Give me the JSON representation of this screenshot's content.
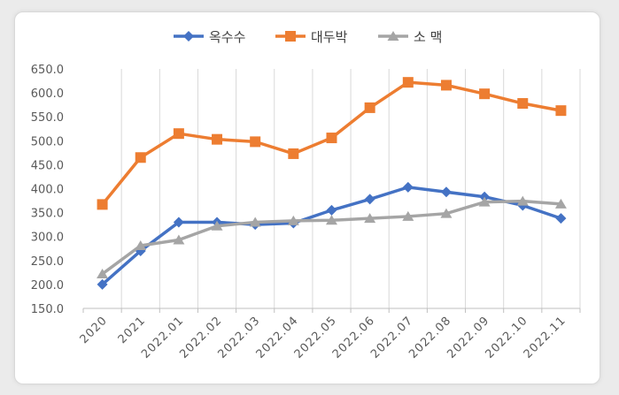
{
  "chart_data": {
    "type": "line",
    "categories": [
      "2020",
      "2021",
      "2022.01",
      "2022.02",
      "2022.03",
      "2022.04",
      "2022.05",
      "2022.06",
      "2022.07",
      "2022.08",
      "2022.09",
      "2022.10",
      "2022.11"
    ],
    "series": [
      {
        "name": "옥수수",
        "color": "#4472c4",
        "marker": "diamond",
        "values": [
          200,
          270,
          330,
          330,
          325,
          328,
          355,
          378,
          403,
          393,
          383,
          365,
          338
        ]
      },
      {
        "name": "대두박",
        "color": "#ed7d31",
        "marker": "square",
        "values": [
          367,
          465,
          515,
          503,
          498,
          473,
          506,
          569,
          622,
          616,
          598,
          578,
          563
        ]
      },
      {
        "name": "소 맥",
        "color": "#a5a5a5",
        "marker": "triangle",
        "values": [
          222,
          281,
          293,
          322,
          330,
          333,
          334,
          338,
          342,
          348,
          372,
          374,
          368
        ]
      }
    ],
    "yticks": [
      "150.0",
      "200.0",
      "250.0",
      "300.0",
      "350.0",
      "400.0",
      "450.0",
      "500.0",
      "550.0",
      "600.0",
      "650.0"
    ],
    "ylim": [
      150,
      650
    ],
    "grid": "vertical",
    "legend_position": "top",
    "title": "",
    "xlabel": "",
    "ylabel": ""
  }
}
